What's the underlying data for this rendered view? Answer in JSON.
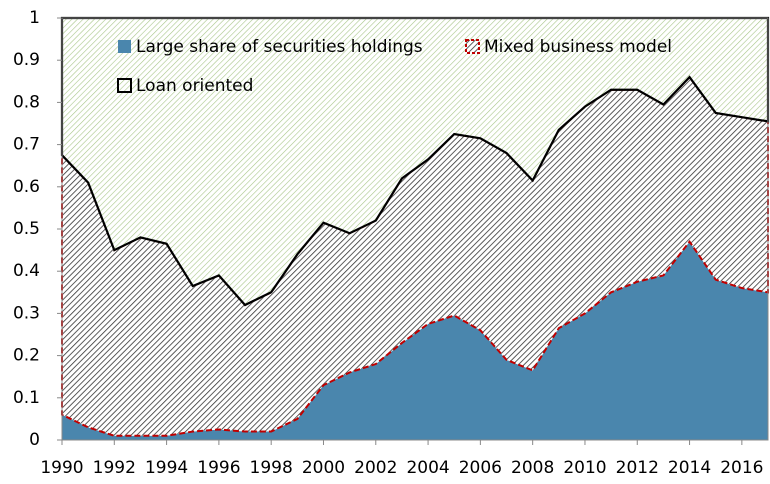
{
  "chart_data": {
    "type": "stacked_area",
    "x": [
      1990,
      1991,
      1992,
      1993,
      1994,
      1995,
      1996,
      1997,
      1998,
      1999,
      2000,
      2001,
      2002,
      2003,
      2004,
      2005,
      2006,
      2007,
      2008,
      2009,
      2010,
      2011,
      2012,
      2013,
      2014,
      2015,
      2016,
      2017
    ],
    "series": [
      {
        "name": "Large share of securities holdings",
        "color": "#4a86ad",
        "values": [
          0.06,
          0.03,
          0.01,
          0.01,
          0.01,
          0.02,
          0.025,
          0.02,
          0.02,
          0.05,
          0.13,
          0.16,
          0.18,
          0.23,
          0.275,
          0.295,
          0.26,
          0.19,
          0.165,
          0.265,
          0.3,
          0.35,
          0.375,
          0.39,
          0.47,
          0.38,
          0.36,
          0.35
        ]
      },
      {
        "name": "Mixed business model",
        "color": "#c00000",
        "values": [
          0.615,
          0.58,
          0.44,
          0.47,
          0.455,
          0.345,
          0.365,
          0.3,
          0.33,
          0.39,
          0.385,
          0.33,
          0.34,
          0.39,
          0.39,
          0.43,
          0.455,
          0.49,
          0.45,
          0.47,
          0.49,
          0.48,
          0.455,
          0.405,
          0.39,
          0.395,
          0.405,
          0.405
        ]
      },
      {
        "name": "Loan oriented",
        "color": "#000000",
        "values": [
          0.325,
          0.39,
          0.55,
          0.52,
          0.535,
          0.635,
          0.61,
          0.68,
          0.65,
          0.56,
          0.485,
          0.51,
          0.48,
          0.38,
          0.335,
          0.275,
          0.285,
          0.32,
          0.385,
          0.265,
          0.21,
          0.17,
          0.17,
          0.205,
          0.14,
          0.225,
          0.235,
          0.245
        ]
      }
    ],
    "xlim": [
      1990,
      2017
    ],
    "xticks": [
      1990,
      1992,
      1994,
      1996,
      1998,
      2000,
      2002,
      2004,
      2006,
      2008,
      2010,
      2012,
      2014,
      2016
    ],
    "ylim": [
      0,
      1
    ],
    "yticks": [
      0,
      0.1,
      0.2,
      0.3,
      0.4,
      0.5,
      0.6,
      0.7,
      0.8,
      0.9,
      1
    ]
  }
}
